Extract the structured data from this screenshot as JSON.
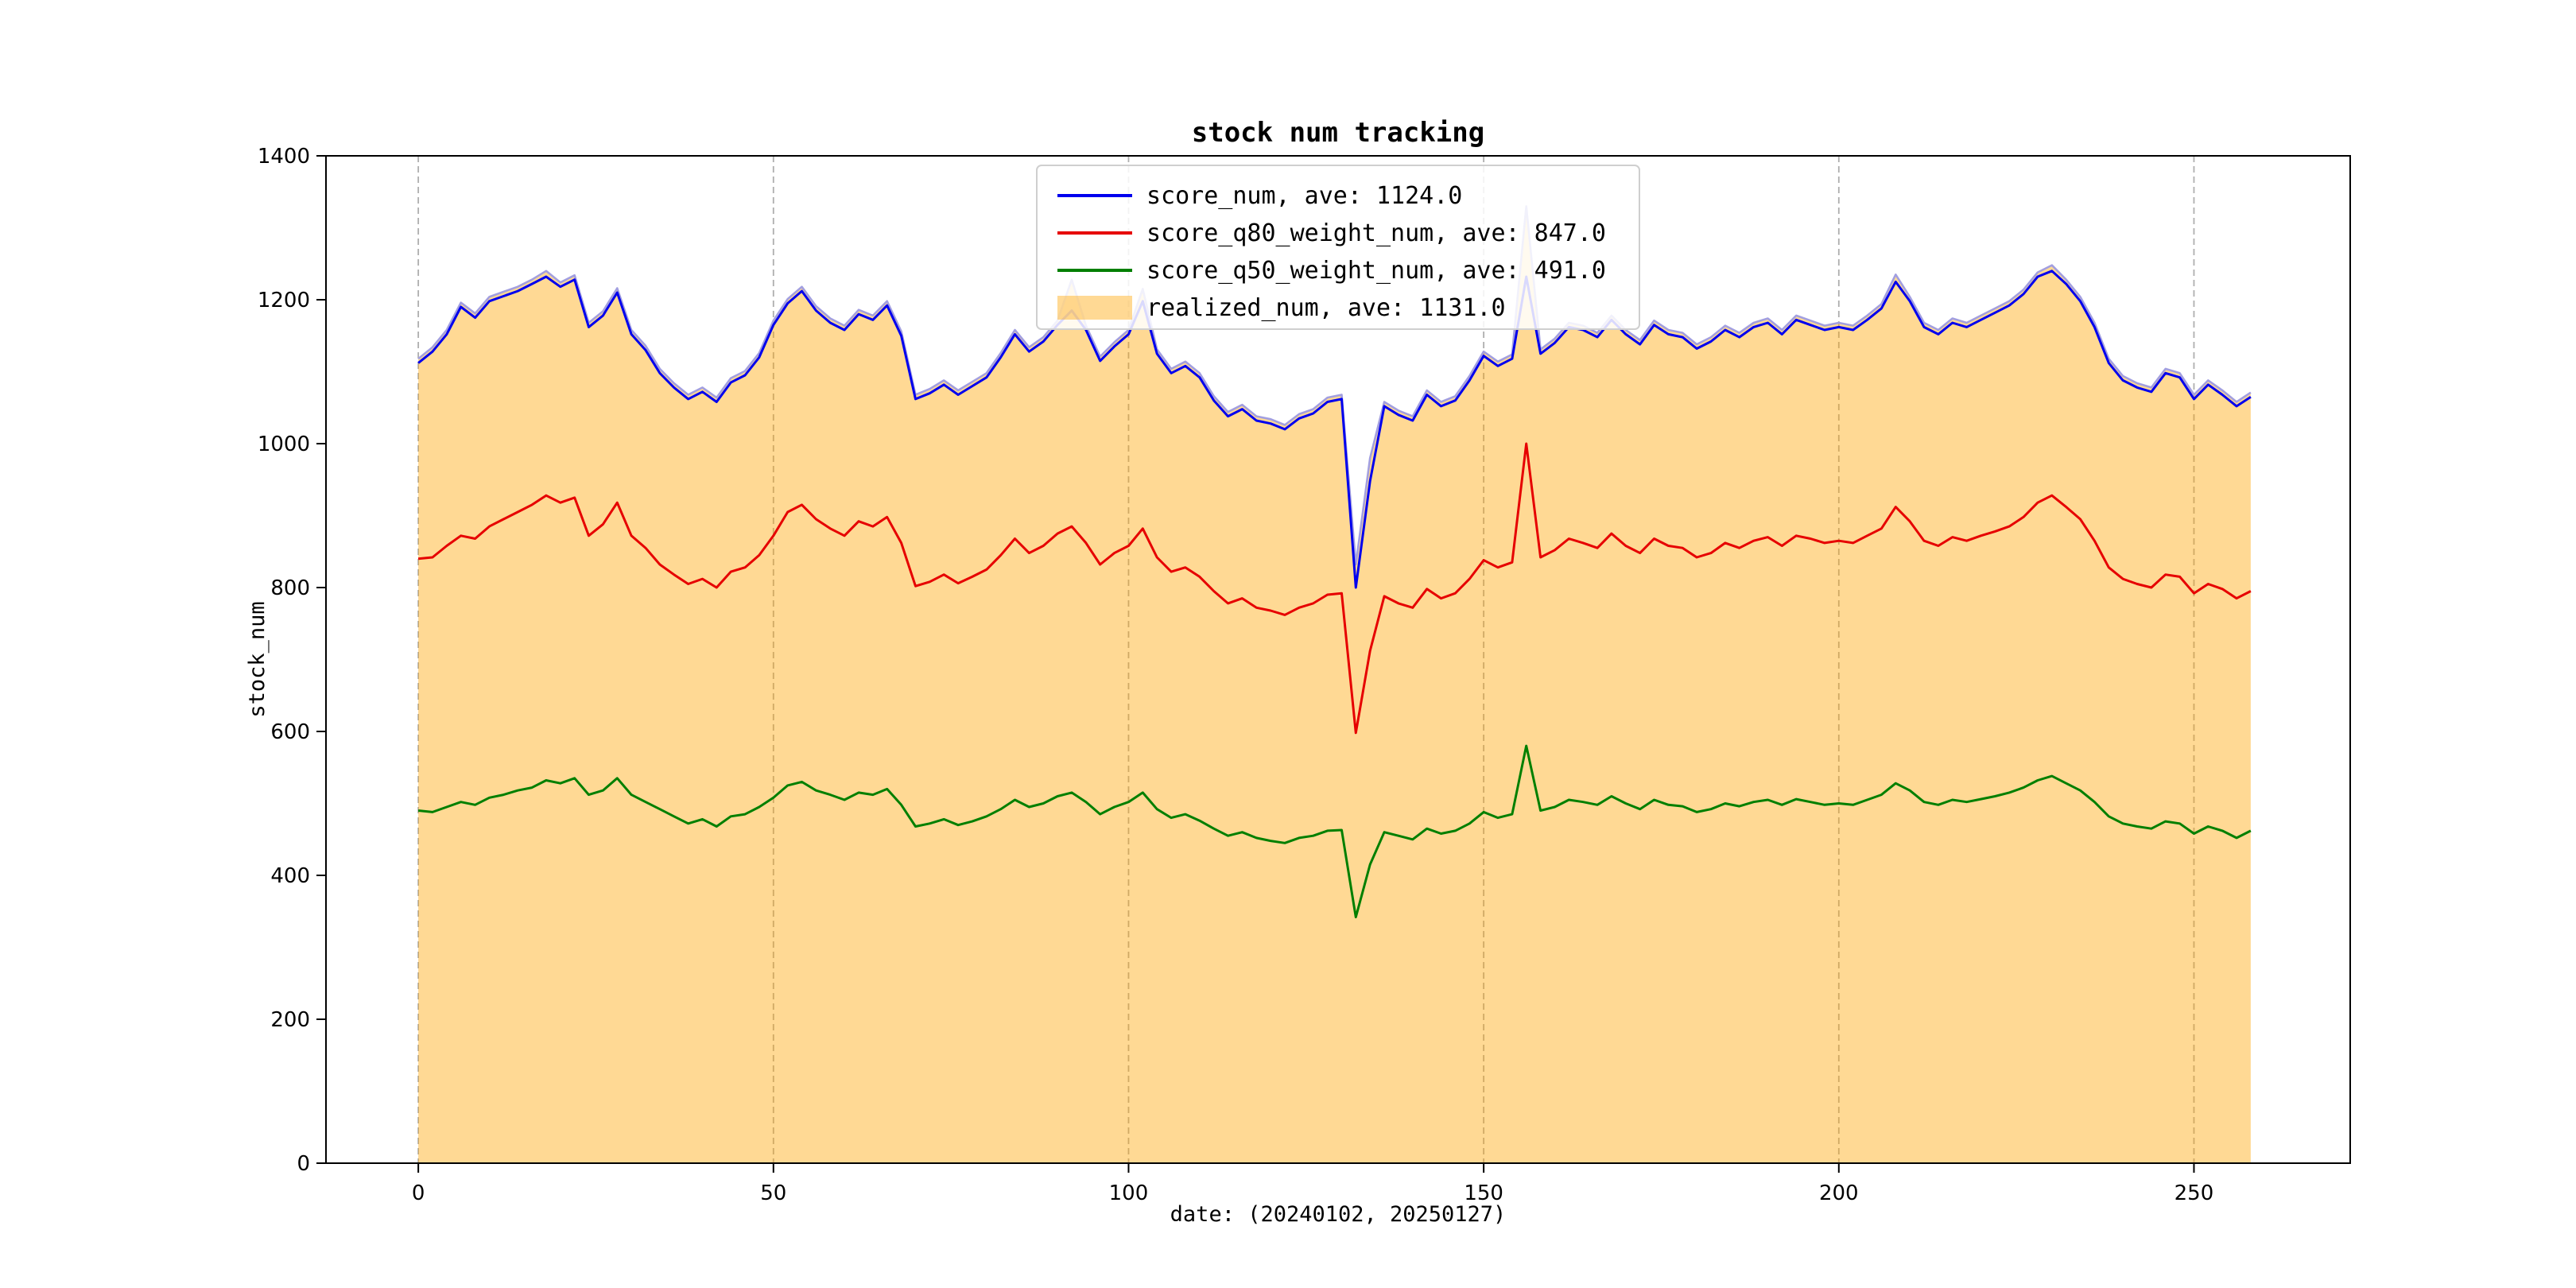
{
  "figure": {
    "background": "#ffffff",
    "title": "stock num tracking"
  },
  "chart_data": {
    "type": "line",
    "title": "stock num tracking",
    "xlabel": "date: (20240102, 20250127)",
    "ylabel": "stock_num",
    "xlim": [
      -13,
      272
    ],
    "ylim": [
      0,
      1400
    ],
    "xticks": [
      0,
      50,
      100,
      150,
      200,
      250
    ],
    "yticks": [
      0,
      200,
      400,
      600,
      800,
      1000,
      1200,
      1400
    ],
    "grid": "x-dashed",
    "grid_color": "#9a9a9a",
    "legend_position": "upper center",
    "x_start": 0,
    "x_step": 2,
    "series": [
      {
        "name": "realized_num, ave: 1131.0",
        "kind": "area",
        "fill_color": "rgba(255,165,0,0.42)",
        "line_color": "#a29fe0",
        "legend_swatch": "patch",
        "values": [
          1118,
          1134,
          1158,
          1196,
          1181,
          1204,
          1211,
          1218,
          1228,
          1240,
          1224,
          1234,
          1168,
          1184,
          1216,
          1158,
          1136,
          1104,
          1084,
          1068,
          1078,
          1064,
          1091,
          1101,
          1126,
          1171,
          1201,
          1218,
          1191,
          1174,
          1164,
          1186,
          1178,
          1198,
          1156,
          1068,
          1076,
          1088,
          1074,
          1086,
          1098,
          1126,
          1158,
          1134,
          1148,
          1171,
          1228,
          1164,
          1121,
          1141,
          1158,
          1215,
          1131,
          1104,
          1114,
          1098,
          1066,
          1044,
          1054,
          1038,
          1034,
          1026,
          1041,
          1048,
          1064,
          1068,
          832,
          980,
          1058,
          1046,
          1038,
          1074,
          1058,
          1066,
          1094,
          1128,
          1114,
          1124,
          1330,
          1131,
          1146,
          1168,
          1164,
          1154,
          1178,
          1158,
          1144,
          1171,
          1158,
          1154,
          1138,
          1148,
          1164,
          1154,
          1168,
          1174,
          1158,
          1178,
          1171,
          1164,
          1168,
          1164,
          1178,
          1194,
          1235,
          1204,
          1168,
          1158,
          1174,
          1168,
          1178,
          1188,
          1198,
          1214,
          1238,
          1248,
          1228,
          1204,
          1168,
          1118,
          1094,
          1084,
          1078,
          1104,
          1098,
          1068,
          1088,
          1074,
          1058,
          1071
        ]
      },
      {
        "name": "score_num, ave: 1124.0",
        "kind": "line",
        "color": "#0000ee",
        "legend_swatch": "line",
        "values": [
          1112,
          1128,
          1152,
          1190,
          1175,
          1198,
          1205,
          1212,
          1222,
          1232,
          1218,
          1228,
          1162,
          1178,
          1210,
          1152,
          1130,
          1098,
          1078,
          1062,
          1072,
          1058,
          1085,
          1095,
          1120,
          1165,
          1195,
          1212,
          1185,
          1168,
          1158,
          1180,
          1172,
          1192,
          1150,
          1062,
          1070,
          1082,
          1068,
          1080,
          1092,
          1120,
          1152,
          1128,
          1142,
          1165,
          1185,
          1158,
          1115,
          1135,
          1152,
          1198,
          1125,
          1098,
          1108,
          1092,
          1060,
          1038,
          1048,
          1032,
          1028,
          1020,
          1035,
          1042,
          1058,
          1062,
          800,
          948,
          1052,
          1040,
          1032,
          1068,
          1052,
          1060,
          1088,
          1122,
          1108,
          1118,
          1232,
          1125,
          1140,
          1162,
          1158,
          1148,
          1172,
          1152,
          1138,
          1165,
          1152,
          1148,
          1132,
          1142,
          1158,
          1148,
          1162,
          1168,
          1152,
          1172,
          1165,
          1158,
          1162,
          1158,
          1172,
          1188,
          1225,
          1198,
          1162,
          1152,
          1168,
          1162,
          1172,
          1182,
          1192,
          1208,
          1232,
          1240,
          1222,
          1198,
          1162,
          1112,
          1088,
          1078,
          1072,
          1098,
          1092,
          1062,
          1082,
          1068,
          1052,
          1065
        ]
      },
      {
        "name": "score_q80_weight_num, ave: 847.0",
        "kind": "line",
        "color": "#e60000",
        "legend_swatch": "line",
        "values": [
          840,
          842,
          858,
          872,
          868,
          885,
          895,
          905,
          915,
          928,
          918,
          925,
          872,
          888,
          918,
          872,
          855,
          832,
          818,
          805,
          812,
          800,
          822,
          828,
          845,
          872,
          905,
          915,
          895,
          882,
          872,
          892,
          885,
          898,
          862,
          802,
          808,
          818,
          806,
          815,
          825,
          845,
          868,
          848,
          858,
          875,
          885,
          862,
          832,
          848,
          858,
          882,
          842,
          822,
          828,
          815,
          795,
          778,
          785,
          772,
          768,
          762,
          772,
          778,
          790,
          792,
          598,
          712,
          788,
          778,
          772,
          798,
          785,
          792,
          812,
          838,
          828,
          835,
          1000,
          842,
          852,
          868,
          862,
          855,
          875,
          858,
          848,
          868,
          858,
          855,
          842,
          848,
          862,
          855,
          865,
          870,
          858,
          872,
          868,
          862,
          865,
          862,
          872,
          882,
          912,
          892,
          865,
          858,
          870,
          865,
          872,
          878,
          885,
          898,
          918,
          928,
          912,
          895,
          865,
          828,
          812,
          805,
          800,
          818,
          815,
          792,
          805,
          798,
          785,
          795
        ]
      },
      {
        "name": "score_q50_weight_num, ave: 491.0",
        "kind": "line",
        "color": "#007f00",
        "legend_swatch": "line",
        "values": [
          490,
          488,
          495,
          502,
          498,
          508,
          512,
          518,
          522,
          532,
          528,
          535,
          512,
          518,
          535,
          512,
          502,
          492,
          482,
          472,
          478,
          468,
          482,
          485,
          495,
          508,
          525,
          530,
          518,
          512,
          505,
          515,
          512,
          520,
          498,
          468,
          472,
          478,
          470,
          475,
          482,
          492,
          505,
          495,
          500,
          510,
          515,
          502,
          485,
          495,
          502,
          515,
          492,
          480,
          485,
          476,
          465,
          455,
          460,
          452,
          448,
          445,
          452,
          455,
          462,
          463,
          342,
          415,
          460,
          455,
          450,
          465,
          458,
          462,
          472,
          488,
          480,
          485,
          580,
          490,
          495,
          505,
          502,
          498,
          510,
          500,
          492,
          505,
          498,
          496,
          488,
          492,
          500,
          496,
          502,
          505,
          498,
          506,
          502,
          498,
          500,
          498,
          505,
          512,
          528,
          518,
          502,
          498,
          505,
          502,
          506,
          510,
          515,
          522,
          532,
          538,
          528,
          518,
          502,
          482,
          472,
          468,
          465,
          475,
          472,
          458,
          468,
          462,
          452,
          462
        ]
      }
    ],
    "legend_order": [
      "score_num, ave: 1124.0",
      "score_q80_weight_num, ave: 847.0",
      "score_q50_weight_num, ave: 491.0",
      "realized_num, ave: 1131.0"
    ]
  }
}
